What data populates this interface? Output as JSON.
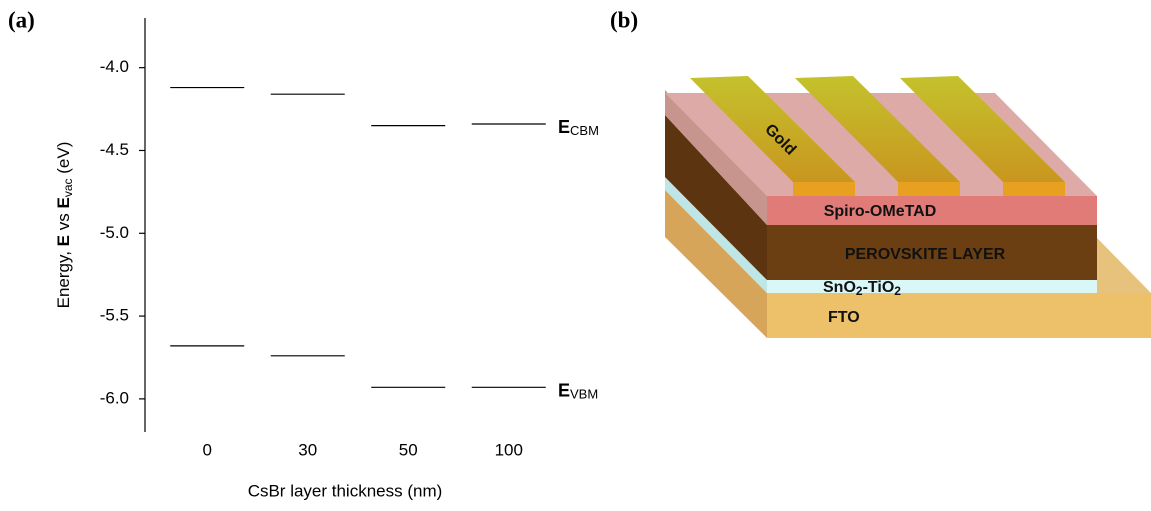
{
  "panels": {
    "a": "(a)",
    "b": "(b)"
  },
  "chart_data": {
    "type": "levels",
    "x_label": "CsBr layer thickness (nm)",
    "y_label": [
      "Energy, ",
      "E",
      " vs ",
      "E",
      "vac",
      " (eV)"
    ],
    "categories": [
      "0",
      "30",
      "50",
      "100"
    ],
    "series": [
      {
        "name": "E",
        "subscript": "CBM",
        "color": "#000000",
        "values": [
          -4.12,
          -4.16,
          -4.35,
          -4.34
        ]
      },
      {
        "name": "E",
        "subscript": "VBM",
        "color": "#000000",
        "values": [
          -5.68,
          -5.74,
          -5.93,
          -5.93
        ]
      }
    ],
    "ylim": [
      -6.2,
      -3.7
    ],
    "yticks": [
      {
        "value": -4,
        "label": "-4.0"
      },
      -4.5,
      {
        "value": -5,
        "label": "-5.0"
      },
      -5.5,
      {
        "value": -6,
        "label": "-6.0"
      }
    ]
  },
  "diagram": {
    "layers": {
      "gold": "Gold",
      "spiro": "Spiro-OMeTAD",
      "perovskite": "PEROVSKITE LAYER",
      "etl": [
        "SnO",
        "2",
        "-TiO",
        "2"
      ],
      "fto": "FTO"
    }
  }
}
